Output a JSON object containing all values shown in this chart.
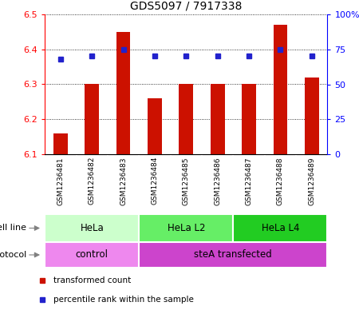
{
  "title": "GDS5097 / 7917338",
  "samples": [
    "GSM1236481",
    "GSM1236482",
    "GSM1236483",
    "GSM1236484",
    "GSM1236485",
    "GSM1236486",
    "GSM1236487",
    "GSM1236488",
    "GSM1236489"
  ],
  "bar_values": [
    6.16,
    6.3,
    6.45,
    6.26,
    6.3,
    6.3,
    6.3,
    6.47,
    6.32
  ],
  "percentile_values": [
    68,
    70,
    75,
    70,
    70,
    70,
    70,
    75,
    70
  ],
  "bar_bottom": 6.1,
  "ylim_left": [
    6.1,
    6.5
  ],
  "ylim_right": [
    0,
    100
  ],
  "yticks_left": [
    6.1,
    6.2,
    6.3,
    6.4,
    6.5
  ],
  "yticks_right": [
    0,
    25,
    50,
    75,
    100
  ],
  "ytick_labels_right": [
    "0",
    "25",
    "50",
    "75",
    "100%"
  ],
  "bar_color": "#cc1100",
  "dot_color": "#2222cc",
  "cell_line_groups": [
    {
      "label": "HeLa",
      "start": 0,
      "end": 3,
      "color": "#ccffcc"
    },
    {
      "label": "HeLa L2",
      "start": 3,
      "end": 6,
      "color": "#66ee66"
    },
    {
      "label": "HeLa L4",
      "start": 6,
      "end": 9,
      "color": "#22cc22"
    }
  ],
  "protocol_groups": [
    {
      "label": "control",
      "start": 0,
      "end": 3,
      "color": "#ee88ee"
    },
    {
      "label": "steA transfected",
      "start": 3,
      "end": 9,
      "color": "#cc44cc"
    }
  ],
  "legend_bar_label": "transformed count",
  "legend_dot_label": "percentile rank within the sample",
  "cell_line_label": "cell line",
  "protocol_label": "protocol",
  "background_color": "#ffffff",
  "tick_area_color": "#cccccc",
  "tick_sep_color": "#aaaaaa"
}
